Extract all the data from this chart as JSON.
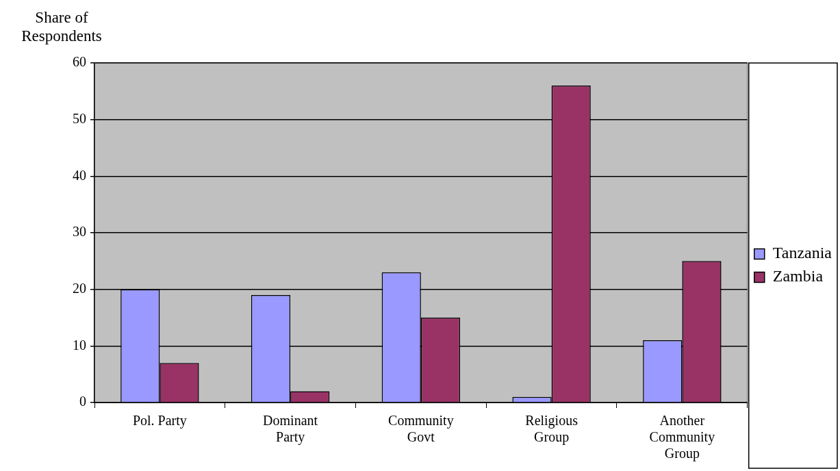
{
  "chart_data": {
    "type": "bar",
    "ylabel": "Share of Respondents",
    "categories": [
      "Pol. Party",
      "Dominant Party",
      "Community Govt",
      "Religious Group",
      "Another Community Group"
    ],
    "series": [
      {
        "name": "Tanzania",
        "color": "#9999ff",
        "values": [
          20,
          19,
          23,
          1,
          11
        ]
      },
      {
        "name": "Zambia",
        "color": "#993366",
        "values": [
          7,
          2,
          15,
          56,
          25
        ]
      }
    ],
    "ylim": [
      0,
      60
    ],
    "yticks": [
      0,
      10,
      20,
      30,
      40,
      50,
      60
    ],
    "grid": "y",
    "legend": "right"
  }
}
